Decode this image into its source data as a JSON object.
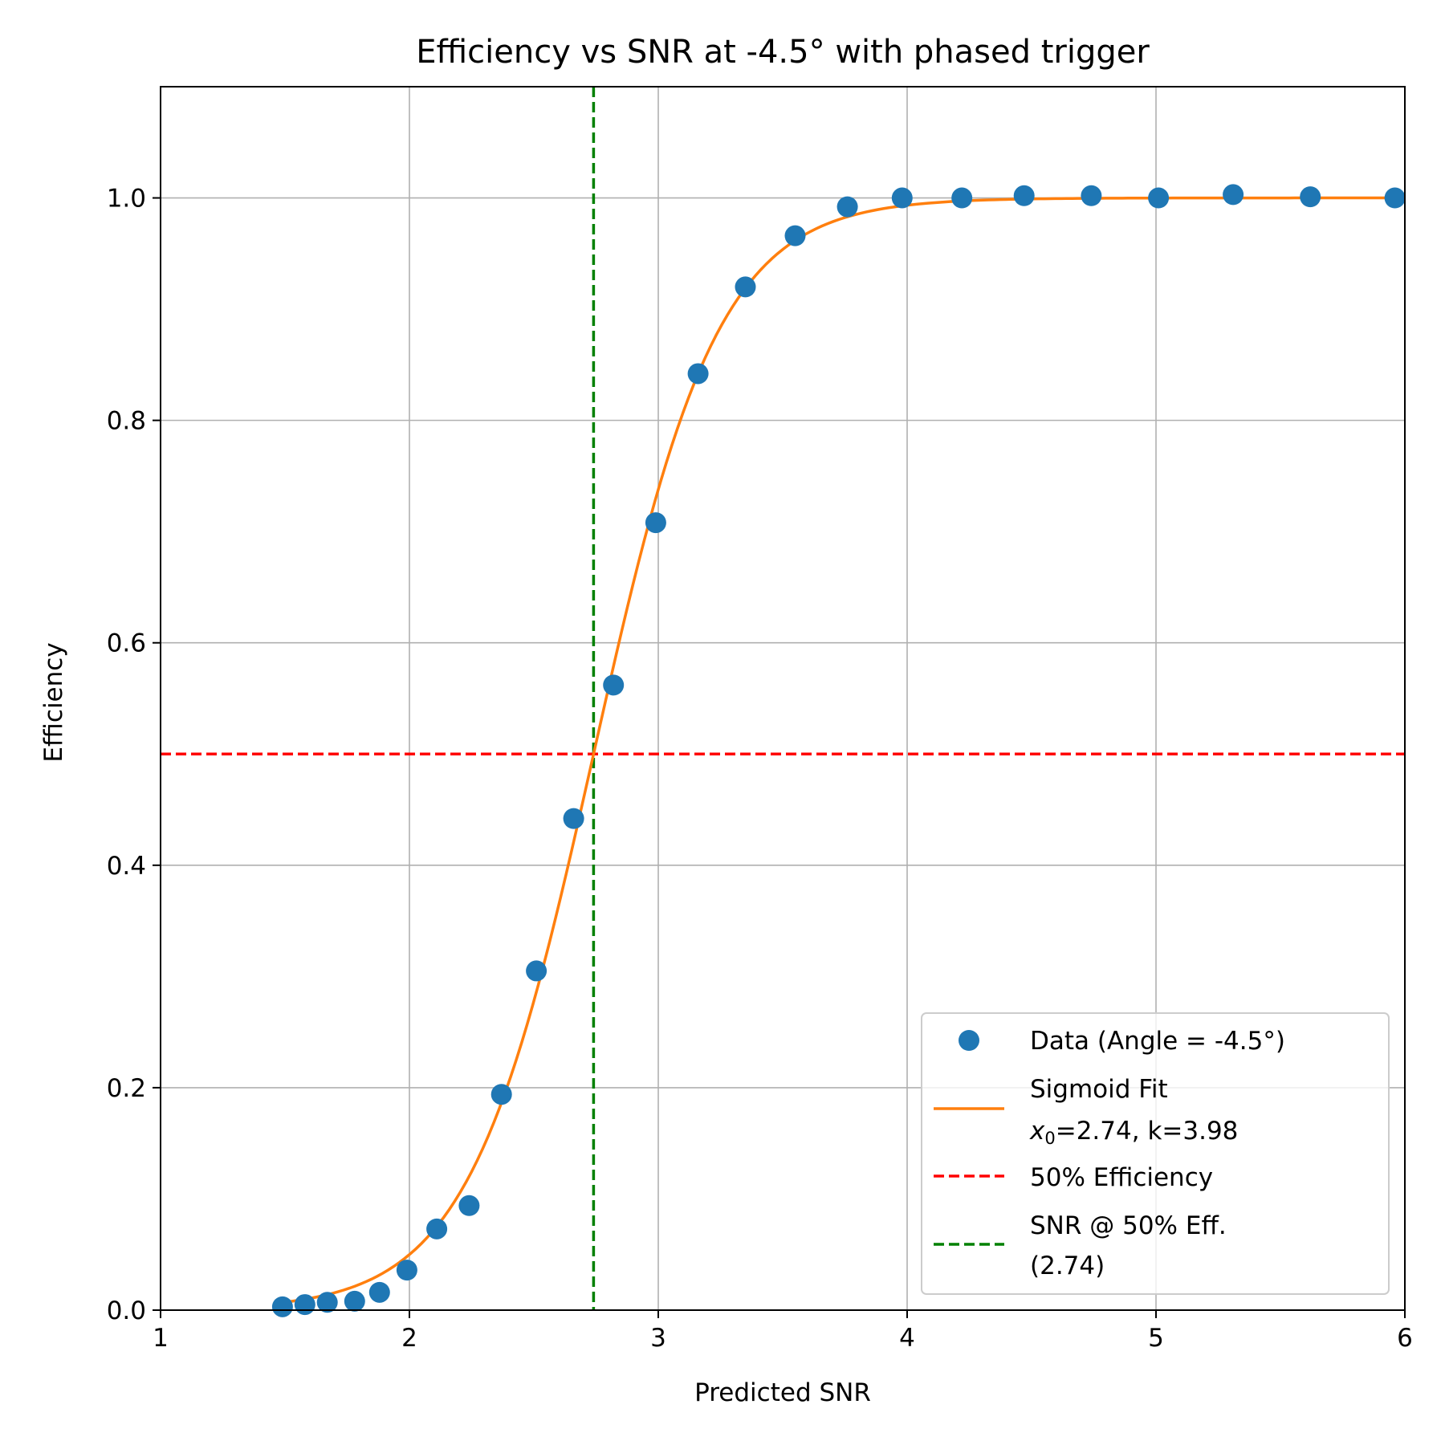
{
  "chart_data": {
    "type": "scatter",
    "title": "Efficiency vs SNR at -4.5° with phased trigger",
    "xlabel": "Predicted SNR",
    "ylabel": "Efficiency",
    "xlim": [
      1,
      6
    ],
    "ylim": [
      0,
      1.1
    ],
    "xticks": [
      "1",
      "2",
      "3",
      "4",
      "5",
      "6"
    ],
    "yticks": [
      "0.0",
      "0.2",
      "0.4",
      "0.6",
      "0.8",
      "1.0"
    ],
    "xtick_values": [
      1,
      2,
      3,
      4,
      5,
      6
    ],
    "ytick_values": [
      0,
      0.2,
      0.4,
      0.6,
      0.8,
      1.0
    ],
    "grid": true,
    "legend_position": "bottom-right",
    "series": [
      {
        "name": "Data (Angle = -4.5°)",
        "kind": "scatter",
        "color": "#1f77b4",
        "x": [
          1.49,
          1.58,
          1.67,
          1.78,
          1.88,
          1.99,
          2.11,
          2.24,
          2.37,
          2.51,
          2.66,
          2.82,
          2.99,
          3.16,
          3.35,
          3.55,
          3.76,
          3.98,
          4.22,
          4.47,
          4.74,
          5.01,
          5.31,
          5.62,
          5.96
        ],
        "y": [
          0.003,
          0.005,
          0.007,
          0.008,
          0.016,
          0.036,
          0.073,
          0.094,
          0.194,
          0.305,
          0.442,
          0.562,
          0.708,
          0.842,
          0.92,
          0.966,
          0.992,
          1.0,
          1.0,
          1.002,
          1.002,
          1.0,
          1.003,
          1.001,
          1.0
        ]
      },
      {
        "name": "Sigmoid Fit",
        "name_line2_var": "x",
        "name_line2_sub": "0",
        "name_line2_rest": "=2.74, k=3.98",
        "kind": "sigmoid",
        "color": "#ff7f0e",
        "x0": 2.74,
        "k": 3.98,
        "x_range": [
          1.49,
          5.96
        ]
      },
      {
        "name": "50% Efficiency",
        "kind": "hline",
        "color": "#ff0000",
        "y": 0.5
      },
      {
        "name": "SNR @ 50% Eff.",
        "name_line2": "(2.74)",
        "kind": "vline",
        "color": "#008000",
        "x": 2.74
      }
    ]
  }
}
